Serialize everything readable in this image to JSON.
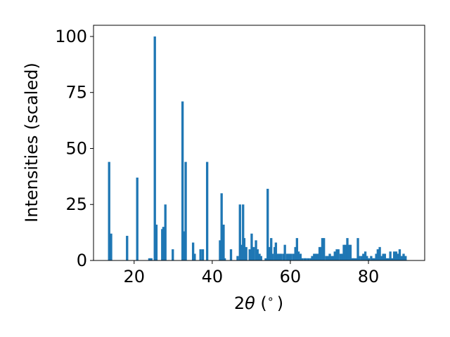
{
  "chart_data": {
    "type": "bar",
    "xlabel_prefix": "2",
    "xlabel_symbol": "θ",
    "xlabel_unit": " (",
    "xlabel_degree": "∘",
    "xlabel_close": ")",
    "ylabel": "Intensities (scaled)",
    "xlim": [
      9.6,
      94.4
    ],
    "ylim": [
      0,
      105
    ],
    "xticks": [
      20,
      40,
      60,
      80
    ],
    "xtick_labels": [
      "20",
      "40",
      "60",
      "80"
    ],
    "yticks": [
      0,
      25,
      50,
      75,
      100
    ],
    "ytick_labels": [
      "0",
      "25",
      "50",
      "75",
      "100"
    ],
    "bar_width": 0.6,
    "bar_color": "#1f77b4",
    "series": [
      {
        "x": [
          13.6,
          14.1,
          18.2,
          20.8,
          23.9,
          24.4,
          25.3,
          25.7,
          27.2,
          27.5,
          28.0,
          29.9,
          32.4,
          32.8,
          33.2,
          35.1,
          35.5,
          37.0,
          37.6,
          38.7,
          42.0,
          42.4,
          42.9,
          43.2,
          44.8,
          46.5,
          47.1,
          47.5,
          47.9,
          48.2,
          48.7,
          49.6,
          50.1,
          50.6,
          51.2,
          51.6,
          52.1,
          52.5,
          53.7,
          54.2,
          54.6,
          55.1,
          55.4,
          56.0,
          56.3,
          56.8,
          57.3,
          57.6,
          58.2,
          58.6,
          59.2,
          59.6,
          60.1,
          60.7,
          61.3,
          61.7,
          62.1,
          62.6,
          63.0,
          63.6,
          64.0,
          64.6,
          65.2,
          65.6,
          66.1,
          66.5,
          67.0,
          67.5,
          67.9,
          68.2,
          68.6,
          69.2,
          69.6,
          70.1,
          70.6,
          71.0,
          71.4,
          71.9,
          72.3,
          72.9,
          73.2,
          73.7,
          74.1,
          74.6,
          75.0,
          75.4,
          75.9,
          76.3,
          76.8,
          77.3,
          77.7,
          78.3,
          78.7,
          79.2,
          79.6,
          80.1,
          80.7,
          81.2,
          81.5,
          82.0,
          82.4,
          82.9,
          83.4,
          83.8,
          84.2,
          84.6,
          85.1,
          85.6,
          86.0,
          86.6,
          87.1,
          87.5,
          88.0,
          88.5,
          89.0,
          89.5
        ],
        "values": [
          44,
          12,
          11,
          37,
          1,
          1,
          100,
          16,
          14,
          15,
          25,
          5,
          71,
          13,
          44,
          8,
          3,
          5,
          5,
          44,
          9,
          30,
          16,
          1,
          5,
          2,
          25,
          7,
          25,
          10,
          6,
          5,
          12,
          6,
          9,
          5,
          3,
          2,
          1,
          32,
          6,
          10,
          3,
          6,
          8,
          3,
          3,
          3,
          3,
          7,
          3,
          3,
          3,
          3,
          6,
          10,
          4,
          3,
          1,
          1,
          1,
          1,
          1,
          2,
          3,
          3,
          3,
          6,
          6,
          10,
          10,
          2,
          2,
          3,
          2,
          2,
          4,
          5,
          5,
          3,
          3,
          7,
          7,
          10,
          7,
          7,
          1,
          1,
          1,
          10,
          2,
          2,
          3,
          4,
          2,
          1,
          2,
          1,
          1,
          3,
          5,
          6,
          2,
          3,
          3,
          1,
          1,
          4,
          1,
          4,
          4,
          3,
          5,
          2,
          3,
          2
        ]
      }
    ]
  }
}
